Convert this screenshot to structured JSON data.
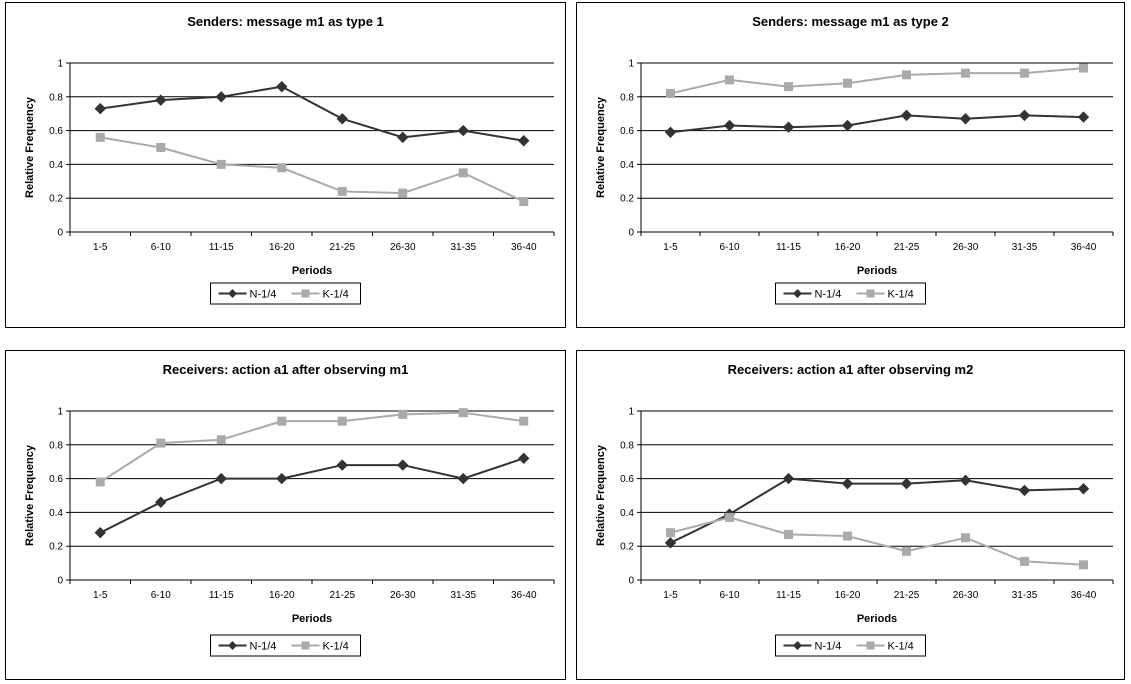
{
  "chart_data": [
    {
      "type": "line",
      "title": "Senders: message m1 as type 1",
      "xlabel": "Periods",
      "ylabel": "Relative Frequency",
      "ylim": [
        0,
        1
      ],
      "yticks": [
        "0",
        "0.2",
        "0.4",
        "0.6",
        "0.8",
        "1"
      ],
      "grid": true,
      "legend": "bottom",
      "categories": [
        "1-5",
        "6-10",
        "11-15",
        "16-20",
        "21-25",
        "26-30",
        "31-35",
        "36-40"
      ],
      "series": [
        {
          "name": "N-1/4",
          "values": [
            0.73,
            0.78,
            0.8,
            0.86,
            0.67,
            0.56,
            0.6,
            0.54
          ],
          "color": "#333333",
          "marker": "diamond"
        },
        {
          "name": "K-1/4",
          "values": [
            0.56,
            0.5,
            0.4,
            0.38,
            0.24,
            0.23,
            0.35,
            0.18
          ],
          "color": "#aaaaaa",
          "marker": "square"
        }
      ]
    },
    {
      "type": "line",
      "title": "Senders: message m1 as type 2",
      "xlabel": "Periods",
      "ylabel": "Relative Frequency",
      "ylim": [
        0,
        1
      ],
      "yticks": [
        "0",
        "0.2",
        "0.4",
        "0.6",
        "0.8",
        "1"
      ],
      "grid": true,
      "legend": "bottom",
      "categories": [
        "1-5",
        "6-10",
        "11-15",
        "16-20",
        "21-25",
        "26-30",
        "31-35",
        "36-40"
      ],
      "series": [
        {
          "name": "N-1/4",
          "values": [
            0.59,
            0.63,
            0.62,
            0.63,
            0.69,
            0.67,
            0.69,
            0.68
          ],
          "color": "#333333",
          "marker": "diamond"
        },
        {
          "name": "K-1/4",
          "values": [
            0.82,
            0.9,
            0.86,
            0.88,
            0.93,
            0.94,
            0.94,
            0.97
          ],
          "color": "#aaaaaa",
          "marker": "square"
        }
      ]
    },
    {
      "type": "line",
      "title": "Receivers: action a1 after observing m1",
      "xlabel": "Periods",
      "ylabel": "Relative Frequency",
      "ylim": [
        0,
        1
      ],
      "yticks": [
        "0",
        "0.2",
        "0.4",
        "0.6",
        "0.8",
        "1"
      ],
      "grid": true,
      "legend": "bottom",
      "categories": [
        "1-5",
        "6-10",
        "11-15",
        "16-20",
        "21-25",
        "26-30",
        "31-35",
        "36-40"
      ],
      "series": [
        {
          "name": "N-1/4",
          "values": [
            0.28,
            0.46,
            0.6,
            0.6,
            0.68,
            0.68,
            0.6,
            0.72
          ],
          "color": "#333333",
          "marker": "diamond"
        },
        {
          "name": "K-1/4",
          "values": [
            0.58,
            0.81,
            0.83,
            0.94,
            0.94,
            0.98,
            0.99,
            0.94
          ],
          "color": "#aaaaaa",
          "marker": "square"
        }
      ]
    },
    {
      "type": "line",
      "title": "Receivers: action a1 after observing m2",
      "xlabel": "Periods",
      "ylabel": "Relative Frequency",
      "ylim": [
        0,
        1
      ],
      "yticks": [
        "0",
        "0.2",
        "0.4",
        "0.6",
        "0.8",
        "1"
      ],
      "grid": true,
      "legend": "bottom",
      "categories": [
        "1-5",
        "6-10",
        "11-15",
        "16-20",
        "21-25",
        "26-30",
        "31-35",
        "36-40"
      ],
      "series": [
        {
          "name": "N-1/4",
          "values": [
            0.22,
            0.39,
            0.6,
            0.57,
            0.57,
            0.59,
            0.53,
            0.54
          ],
          "color": "#333333",
          "marker": "diamond"
        },
        {
          "name": "K-1/4",
          "values": [
            0.28,
            0.37,
            0.27,
            0.26,
            0.17,
            0.25,
            0.11,
            0.09
          ],
          "color": "#aaaaaa",
          "marker": "square"
        }
      ]
    }
  ]
}
